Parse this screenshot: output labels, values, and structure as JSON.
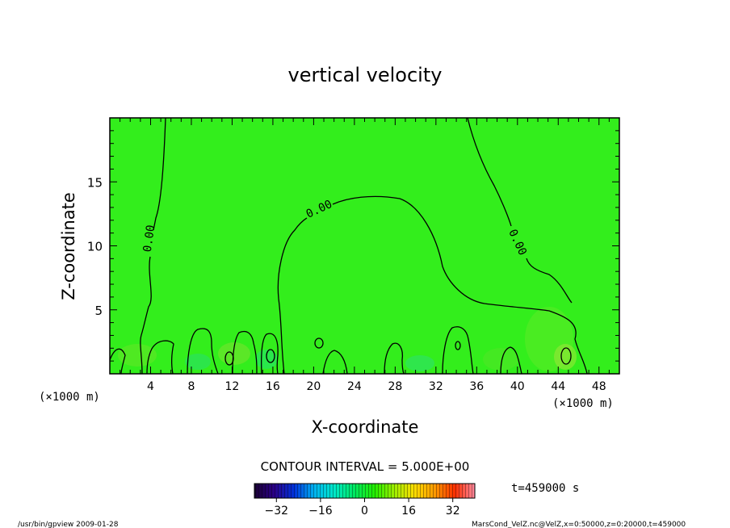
{
  "chart_data": {
    "type": "heatmap",
    "title": "vertical velocity",
    "xlabel": "X-coordinate",
    "ylabel": "Z-coordinate",
    "x_unit_label": "(×1000 m)",
    "x_unit_label_right": "(×1000 m)",
    "xlim": [
      0,
      50
    ],
    "ylim": [
      0,
      20
    ],
    "x_ticks": [
      "4",
      "8",
      "12",
      "16",
      "20",
      "24",
      "28",
      "32",
      "36",
      "40",
      "44",
      "48"
    ],
    "y_ticks": [
      "5",
      "10",
      "15"
    ],
    "contour_interval_text": "CONTOUR INTERVAL = 5.000E+00",
    "contour_labels": [
      "0.00",
      "0.00",
      "0.00"
    ],
    "field_value_estimate": 0,
    "colorbar": {
      "range": [
        -40,
        40
      ],
      "ticks": [
        "−32",
        "−16",
        "0",
        "16",
        "32"
      ],
      "colors": [
        "#1a0033",
        "#2a0088",
        "#0033dd",
        "#00b4f0",
        "#00e8c8",
        "#00e860",
        "#22ee00",
        "#a0ee00",
        "#ffdd00",
        "#ff9a00",
        "#ff3000",
        "#ff8aa0"
      ]
    },
    "time_text": "t=459000 s",
    "footer_left": "/usr/bin/gpview  2009-01-28",
    "footer_right": "MarsCond_VelZ.nc@VelZ,x=0:50000,z=0:20000,t=459000"
  }
}
